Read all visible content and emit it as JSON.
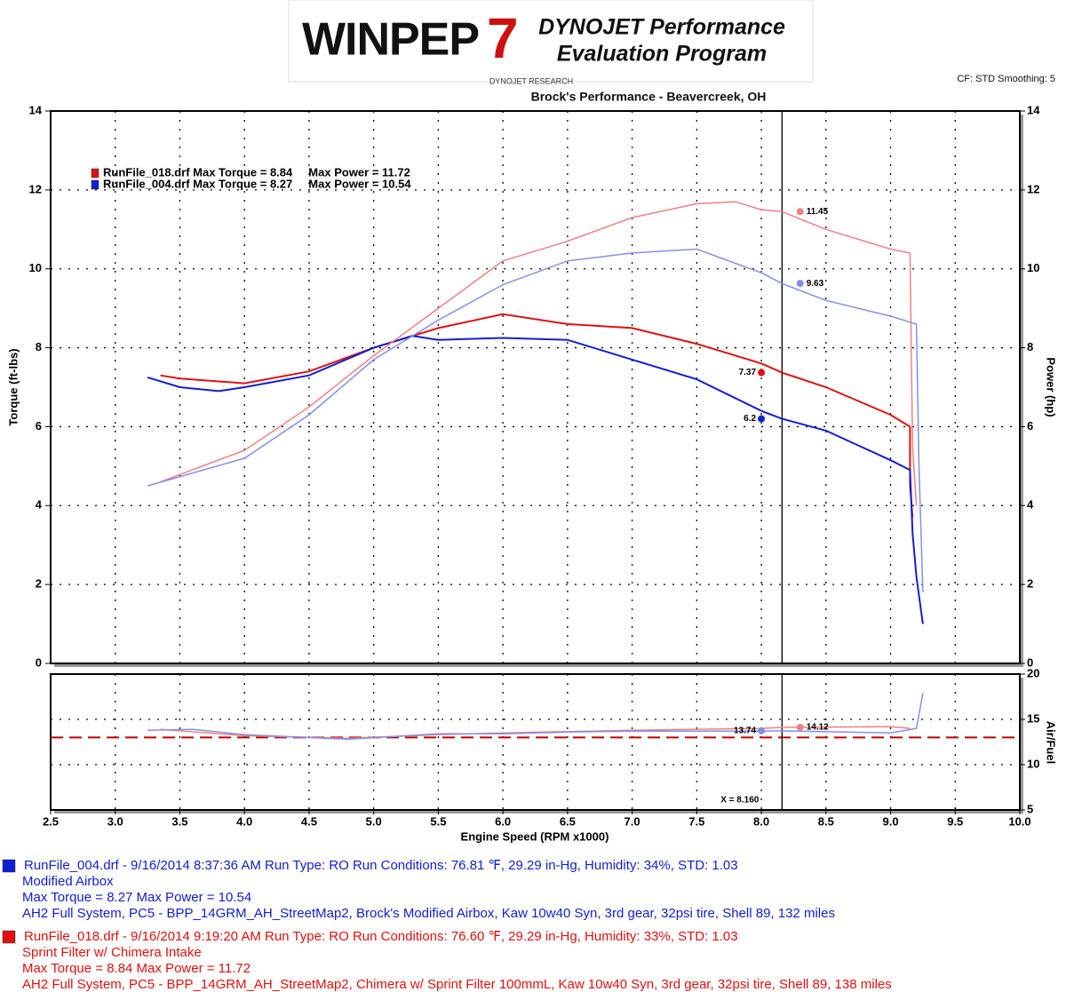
{
  "header": {
    "logo": "WINPEP",
    "logo_version": "7",
    "brand": "DYNOJET Performance",
    "program": "Evaluation Program",
    "company": "DYNOJET RESEARCH",
    "settings": "CF: STD  Smoothing: 5"
  },
  "chart_data": [
    {
      "type": "line",
      "title": "Brock's Performance - Beavercreek, OH",
      "ylabel": "Torque (ft-lbs)",
      "y2label": "Power (hp)",
      "ylim": [
        0,
        14
      ],
      "yticks": [
        0,
        2,
        4,
        6,
        8,
        10,
        12,
        14
      ],
      "y2lim": [
        0,
        14
      ],
      "y2ticks": [
        0,
        2,
        4,
        6,
        8,
        10,
        12,
        14
      ],
      "grid": true,
      "legend": [
        {
          "text": "RunFile_018.drf Max Torque = 8.84     Max Power = 11.72",
          "color": "#e01010"
        },
        {
          "text": "RunFile_004.drf Max Torque = 8.27     Max Power = 10.54",
          "color": "#1020d0"
        }
      ],
      "series": [
        {
          "color": "#e01010",
          "x": [
            3.35,
            3.5,
            4.0,
            4.5,
            5.0,
            5.5,
            6.0,
            6.5,
            7.0,
            7.5,
            8.0,
            8.16,
            8.5,
            9.0,
            9.15,
            9.15,
            9.17
          ],
          "values": [
            7.3,
            7.22,
            7.1,
            7.4,
            8.0,
            8.5,
            8.85,
            8.6,
            8.5,
            8.1,
            7.6,
            7.37,
            7.0,
            6.3,
            6.0,
            4.5,
            3.7
          ],
          "cursor_value": 7.37
        },
        {
          "color": "#1020d0",
          "x": [
            3.25,
            3.5,
            3.8,
            4.0,
            4.5,
            5.0,
            5.3,
            5.5,
            6.0,
            6.5,
            7.0,
            7.5,
            8.0,
            8.16,
            8.5,
            9.0,
            9.15,
            9.17,
            9.2,
            9.25
          ],
          "values": [
            7.25,
            7.0,
            6.9,
            7.0,
            7.3,
            8.0,
            8.3,
            8.2,
            8.25,
            8.2,
            7.7,
            7.2,
            6.4,
            6.2,
            5.9,
            5.15,
            4.9,
            3.3,
            2.2,
            1.0
          ],
          "cursor_value": 6.2
        },
        {
          "color": "#f08080",
          "axis": "y2",
          "x": [
            3.35,
            4.0,
            4.5,
            5.0,
            5.5,
            6.0,
            6.5,
            7.0,
            7.5,
            7.8,
            8.0,
            8.16,
            8.5,
            9.0,
            9.15,
            9.17,
            9.2
          ],
          "values": [
            4.6,
            5.4,
            6.5,
            7.8,
            9.0,
            10.2,
            10.7,
            11.3,
            11.65,
            11.7,
            11.5,
            11.45,
            11.0,
            10.5,
            10.4,
            5.5,
            4.0
          ],
          "cursor_value": 11.45
        },
        {
          "color": "#8090e8",
          "axis": "y2",
          "x": [
            3.25,
            4.0,
            4.5,
            5.0,
            5.5,
            6.0,
            6.5,
            7.0,
            7.5,
            8.0,
            8.16,
            8.5,
            9.0,
            9.2,
            9.22,
            9.25
          ],
          "values": [
            4.5,
            5.2,
            6.3,
            7.7,
            8.7,
            9.6,
            10.2,
            10.4,
            10.5,
            9.9,
            9.63,
            9.2,
            8.8,
            8.6,
            5.0,
            1.8
          ],
          "cursor_value": 9.63
        }
      ]
    },
    {
      "type": "line",
      "xlabel": "Engine Speed (RPM x1000)",
      "ylabel": "Air/Fuel",
      "xlim": [
        2.5,
        10.0
      ],
      "xticks": [
        2.5,
        {
          "value": 3,
          "label": "3.0"
        },
        3.5,
        {
          "value": 4,
          "label": "4.0"
        },
        4.5,
        {
          "value": 5,
          "label": "5.0"
        },
        5.5,
        {
          "value": 6,
          "label": "6.0"
        },
        6.5,
        {
          "value": 7,
          "label": "7.0"
        },
        7.5,
        {
          "value": 8,
          "label": "8.0"
        },
        8.5,
        {
          "value": 9,
          "label": "9.0"
        },
        9.5,
        {
          "value": 10,
          "label": "10.0"
        }
      ],
      "ylim": [
        5,
        20
      ],
      "yticks": [
        5,
        10,
        15,
        20
      ],
      "grid": true,
      "reference": 13,
      "cursor": {
        "x": 8.16,
        "label": "X = 8.160"
      },
      "series": [
        {
          "color": "#f08080",
          "x": [
            3.35,
            4.0,
            4.8,
            5.5,
            6.0,
            7.0,
            8.0,
            8.16,
            9.0,
            9.15
          ],
          "values": [
            13.9,
            13.2,
            12.9,
            13.3,
            13.5,
            13.8,
            14.0,
            14.12,
            14.2,
            14.0
          ],
          "cursor_value": 14.12
        },
        {
          "color": "#8090e8",
          "x": [
            3.25,
            3.6,
            4.0,
            4.8,
            5.5,
            6.0,
            6.5,
            7.0,
            8.0,
            8.16,
            9.0,
            9.2,
            9.25
          ],
          "values": [
            13.8,
            13.9,
            13.3,
            12.8,
            13.4,
            13.4,
            13.6,
            13.7,
            13.7,
            13.74,
            13.5,
            14.0,
            17.9
          ],
          "cursor_value": 13.74
        }
      ]
    }
  ],
  "runs": [
    {
      "color": "#1020d0",
      "lines": [
        "RunFile_004.drf - 9/16/2014 8:37:36 AM  Run Type: RO  Run Conditions: 76.81 ℉, 29.29 in-Hg,  Humidity:  34%, STD: 1.03",
        "Modified Airbox",
        "Max Torque = 8.27  Max Power = 10.54",
        "AH2 Full System, PC5 - BPP_14GRM_AH_StreetMap2, Brock's Modified Airbox, Kaw 10w40 Syn, 3rd gear, 32psi tire, Shell 89, 132 miles"
      ]
    },
    {
      "color": "#e01010",
      "lines": [
        "RunFile_018.drf - 9/16/2014 9:19:20 AM  Run Type: RO  Run Conditions: 76.60 ℉, 29.29 in-Hg,  Humidity:  33%, STD: 1.03",
        "Sprint Filter w/ Chimera Intake",
        "Max Torque = 8.84  Max Power = 11.72",
        "AH2 Full System, PC5 - BPP_14GRM_AH_StreetMap2, Chimera w/ Sprint Filter 100mmL, Kaw 10w40 Syn, 3rd gear, 32psi tire, Shell 89, 138 miles"
      ]
    }
  ]
}
